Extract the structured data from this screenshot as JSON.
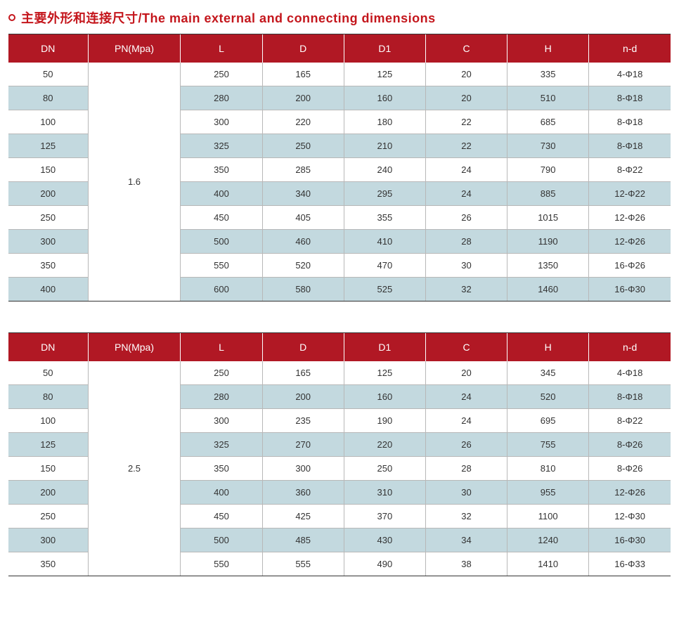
{
  "title": "主要外形和连接尺寸/The main external and connecting dimensions",
  "title_color": "#c4161c",
  "header_bg": "#b11824",
  "header_text_color": "#ffffff",
  "row_even_bg": "#c3d9df",
  "row_odd_bg": "#ffffff",
  "border_color": "#b8b8b8",
  "outer_border_color": "#333333",
  "cell_text_color": "#333333",
  "font_size_header": 14,
  "font_size_cell": 13,
  "col_widths_pct": [
    12,
    14,
    12.33,
    12.33,
    12.33,
    12.33,
    12.33,
    12.33
  ],
  "tables": [
    {
      "columns": [
        "DN",
        "PN(Mpa)",
        "L",
        "D",
        "D1",
        "C",
        "H",
        "n-d"
      ],
      "merged_col_index": 1,
      "merged_value": "1.6",
      "rows": [
        [
          "50",
          "250",
          "165",
          "125",
          "20",
          "335",
          "4-Φ18"
        ],
        [
          "80",
          "280",
          "200",
          "160",
          "20",
          "510",
          "8-Φ18"
        ],
        [
          "100",
          "300",
          "220",
          "180",
          "22",
          "685",
          "8-Φ18"
        ],
        [
          "125",
          "325",
          "250",
          "210",
          "22",
          "730",
          "8-Φ18"
        ],
        [
          "150",
          "350",
          "285",
          "240",
          "24",
          "790",
          "8-Φ22"
        ],
        [
          "200",
          "400",
          "340",
          "295",
          "24",
          "885",
          "12-Φ22"
        ],
        [
          "250",
          "450",
          "405",
          "355",
          "26",
          "1015",
          "12-Φ26"
        ],
        [
          "300",
          "500",
          "460",
          "410",
          "28",
          "1190",
          "12-Φ26"
        ],
        [
          "350",
          "550",
          "520",
          "470",
          "30",
          "1350",
          "16-Φ26"
        ],
        [
          "400",
          "600",
          "580",
          "525",
          "32",
          "1460",
          "16-Φ30"
        ]
      ]
    },
    {
      "columns": [
        "DN",
        "PN(Mpa)",
        "L",
        "D",
        "D1",
        "C",
        "H",
        "n-d"
      ],
      "merged_col_index": 1,
      "merged_value": "2.5",
      "rows": [
        [
          "50",
          "250",
          "165",
          "125",
          "20",
          "345",
          "4-Φ18"
        ],
        [
          "80",
          "280",
          "200",
          "160",
          "24",
          "520",
          "8-Φ18"
        ],
        [
          "100",
          "300",
          "235",
          "190",
          "24",
          "695",
          "8-Φ22"
        ],
        [
          "125",
          "325",
          "270",
          "220",
          "26",
          "755",
          "8-Φ26"
        ],
        [
          "150",
          "350",
          "300",
          "250",
          "28",
          "810",
          "8-Φ26"
        ],
        [
          "200",
          "400",
          "360",
          "310",
          "30",
          "955",
          "12-Φ26"
        ],
        [
          "250",
          "450",
          "425",
          "370",
          "32",
          "1100",
          "12-Φ30"
        ],
        [
          "300",
          "500",
          "485",
          "430",
          "34",
          "1240",
          "16-Φ30"
        ],
        [
          "350",
          "550",
          "555",
          "490",
          "38",
          "1410",
          "16-Φ33"
        ]
      ]
    }
  ]
}
